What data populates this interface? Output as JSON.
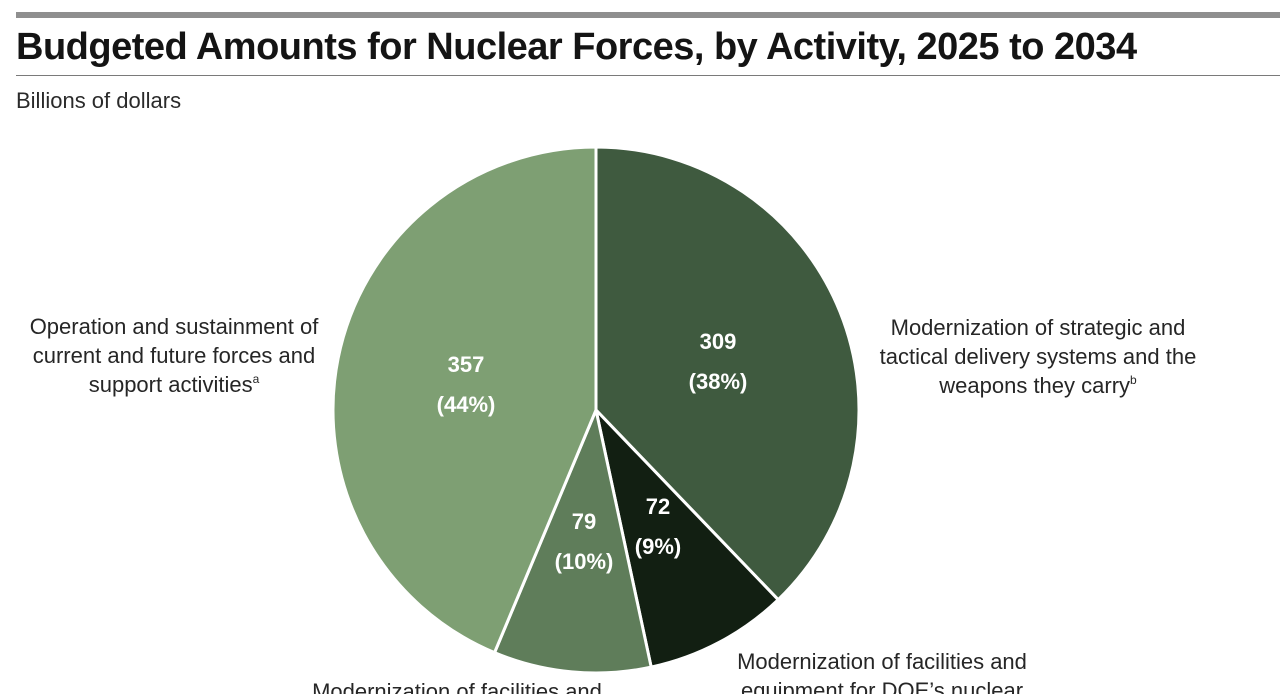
{
  "title": "Budgeted Amounts for Nuclear Forces, by Activity, 2025 to 2034",
  "subtitle": "Billions of dollars",
  "chart_data": {
    "type": "pie",
    "slices": [
      {
        "value": 309,
        "percent_label": "(38%)",
        "color": "#3f5a3f",
        "value_label": "309",
        "label_lines": [
          "Modernization of strategic and",
          "tactical delivery systems and the",
          "weapons they carry"
        ],
        "footnote": "b"
      },
      {
        "value": 72,
        "percent_label": "(9%)",
        "color": "#121f12",
        "value_label": "72",
        "label_lines": [
          "Modernization of facilities and",
          "equipment for DOE’s nuclear"
        ],
        "footnote": ""
      },
      {
        "value": 79,
        "percent_label": "(10%)",
        "color": "#5f7d5a",
        "value_label": "79",
        "label_lines": [
          "Modernization of facilities and"
        ],
        "footnote": ""
      },
      {
        "value": 357,
        "percent_label": "(44%)",
        "color": "#7e9f73",
        "value_label": "357",
        "label_lines": [
          "Operation and sustainment of",
          "current and future forces and",
          "support activities"
        ],
        "footnote": "a"
      }
    ]
  }
}
